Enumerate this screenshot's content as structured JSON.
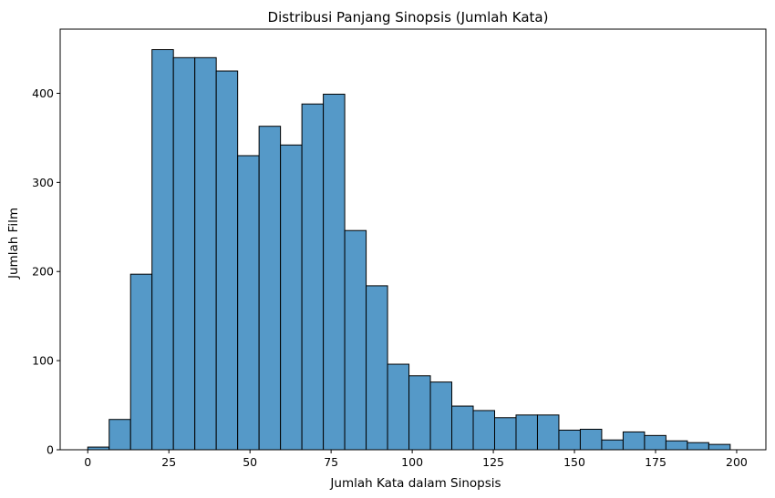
{
  "chart_data": {
    "type": "bar",
    "subtype": "histogram",
    "title": "Distribusi Panjang Sinopsis (Jumlah Kata)",
    "xlabel": "Jumlah Kata dalam Sinopsis",
    "ylabel": "Jumlah Film",
    "xlim": [
      -8.5,
      209
    ],
    "ylim": [
      0,
      472
    ],
    "xticks": [
      0,
      25,
      50,
      75,
      100,
      125,
      150,
      175,
      200
    ],
    "yticks": [
      0,
      100,
      200,
      300,
      400
    ],
    "grid": false,
    "legend": "none",
    "bar_color": "#5599c8",
    "edge_color": "#000000",
    "bins": [
      {
        "x0": 0.0,
        "x1": 6.6,
        "count": 3
      },
      {
        "x0": 6.6,
        "x1": 13.2,
        "count": 34
      },
      {
        "x0": 13.2,
        "x1": 19.8,
        "count": 197
      },
      {
        "x0": 19.8,
        "x1": 26.4,
        "count": 449
      },
      {
        "x0": 26.4,
        "x1": 33.0,
        "count": 440
      },
      {
        "x0": 33.0,
        "x1": 39.6,
        "count": 440
      },
      {
        "x0": 39.6,
        "x1": 46.2,
        "count": 425
      },
      {
        "x0": 46.2,
        "x1": 52.8,
        "count": 330
      },
      {
        "x0": 52.8,
        "x1": 59.4,
        "count": 363
      },
      {
        "x0": 59.4,
        "x1": 66.0,
        "count": 342
      },
      {
        "x0": 66.0,
        "x1": 72.6,
        "count": 388
      },
      {
        "x0": 72.6,
        "x1": 79.2,
        "count": 399
      },
      {
        "x0": 79.2,
        "x1": 85.8,
        "count": 246
      },
      {
        "x0": 85.8,
        "x1": 92.4,
        "count": 184
      },
      {
        "x0": 92.4,
        "x1": 99.0,
        "count": 96
      },
      {
        "x0": 99.0,
        "x1": 105.6,
        "count": 83
      },
      {
        "x0": 105.6,
        "x1": 112.2,
        "count": 76
      },
      {
        "x0": 112.2,
        "x1": 118.8,
        "count": 49
      },
      {
        "x0": 118.8,
        "x1": 125.4,
        "count": 44
      },
      {
        "x0": 125.4,
        "x1": 132.0,
        "count": 36
      },
      {
        "x0": 132.0,
        "x1": 138.6,
        "count": 39
      },
      {
        "x0": 138.6,
        "x1": 145.2,
        "count": 39
      },
      {
        "x0": 145.2,
        "x1": 151.8,
        "count": 22
      },
      {
        "x0": 151.8,
        "x1": 158.4,
        "count": 23
      },
      {
        "x0": 158.4,
        "x1": 165.0,
        "count": 11
      },
      {
        "x0": 165.0,
        "x1": 171.6,
        "count": 20
      },
      {
        "x0": 171.6,
        "x1": 178.2,
        "count": 16
      },
      {
        "x0": 178.2,
        "x1": 184.8,
        "count": 10
      },
      {
        "x0": 184.8,
        "x1": 191.4,
        "count": 8
      },
      {
        "x0": 191.4,
        "x1": 198.0,
        "count": 6
      }
    ]
  }
}
